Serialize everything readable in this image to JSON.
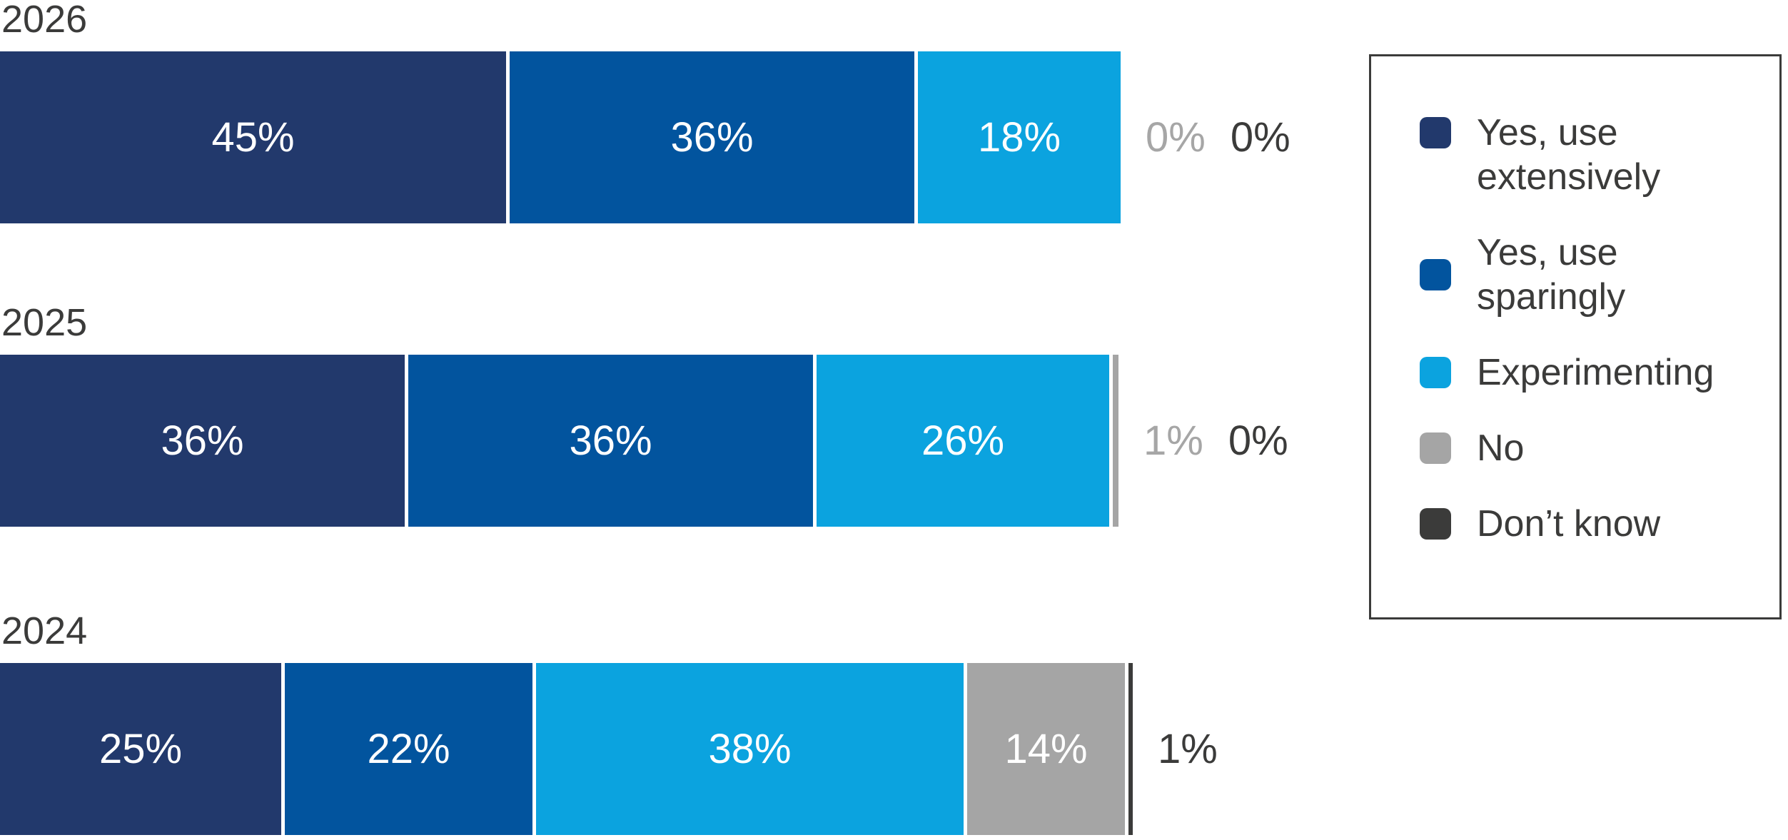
{
  "colors": {
    "extensively": "#22396C",
    "sparingly": "#02549E",
    "experimenting": "#0BA3DF",
    "no": "#A5A5A5",
    "dont_know": "#3B3B3A",
    "outside_label_gray": "#A6A6A6",
    "outside_label_dark": "#3B3B3A",
    "text": "#3B3B3A",
    "bar_value_text": "#FFFFFF",
    "legend_border": "#3B3B3A",
    "background": "#FFFFFF"
  },
  "chart_data": {
    "type": "bar",
    "variant": "horizontal-stacked",
    "value_suffix": "%",
    "axis": {
      "min": 0,
      "max": 100,
      "gridlines": false,
      "axis_labels": false
    },
    "legend_position": "right",
    "categories": [
      "2026",
      "2025",
      "2024"
    ],
    "series": [
      {
        "name": "Yes, use extensively",
        "key": "extensively",
        "values": [
          45,
          36,
          25
        ]
      },
      {
        "name": "Yes, use sparingly",
        "key": "sparingly",
        "values": [
          36,
          36,
          22
        ]
      },
      {
        "name": "Experimenting",
        "key": "experimenting",
        "values": [
          18,
          26,
          38
        ]
      },
      {
        "name": "No",
        "key": "no",
        "values": [
          0,
          1,
          14
        ]
      },
      {
        "name": "Don’t know",
        "key": "dont_know",
        "values": [
          0,
          0,
          1
        ]
      }
    ],
    "rows": [
      {
        "year": "2026",
        "segments": [
          {
            "key": "extensively",
            "value": 45,
            "label": "45%"
          },
          {
            "key": "sparingly",
            "value": 36,
            "label": "36%"
          },
          {
            "key": "experimenting",
            "value": 18,
            "label": "18%"
          }
        ],
        "outside": [
          {
            "key": "no",
            "label": "0%",
            "tone": "gray"
          },
          {
            "key": "dont_know",
            "label": "0%",
            "tone": "dark"
          }
        ]
      },
      {
        "year": "2025",
        "segments": [
          {
            "key": "extensively",
            "value": 36,
            "label": "36%"
          },
          {
            "key": "sparingly",
            "value": 36,
            "label": "36%"
          },
          {
            "key": "experimenting",
            "value": 26,
            "label": "26%"
          },
          {
            "key": "no",
            "value": 1,
            "label": ""
          }
        ],
        "outside": [
          {
            "key": "no",
            "label": "1%",
            "tone": "gray"
          },
          {
            "key": "dont_know",
            "label": "0%",
            "tone": "dark"
          }
        ]
      },
      {
        "year": "2024",
        "segments": [
          {
            "key": "extensively",
            "value": 25,
            "label": "25%"
          },
          {
            "key": "sparingly",
            "value": 22,
            "label": "22%"
          },
          {
            "key": "experimenting",
            "value": 38,
            "label": "38%"
          },
          {
            "key": "no",
            "value": 14,
            "label": "14%"
          },
          {
            "key": "dont_know",
            "value": 1,
            "label": ""
          }
        ],
        "outside": [
          {
            "key": "dont_know",
            "label": "1%",
            "tone": "dark"
          }
        ]
      }
    ]
  },
  "legend": {
    "items": [
      {
        "key": "extensively",
        "label": "Yes, use extensively"
      },
      {
        "key": "sparingly",
        "label": "Yes, use sparingly"
      },
      {
        "key": "experimenting",
        "label": "Experimenting"
      },
      {
        "key": "no",
        "label": "No"
      },
      {
        "key": "dont_know",
        "label": "Don’t know"
      }
    ]
  }
}
